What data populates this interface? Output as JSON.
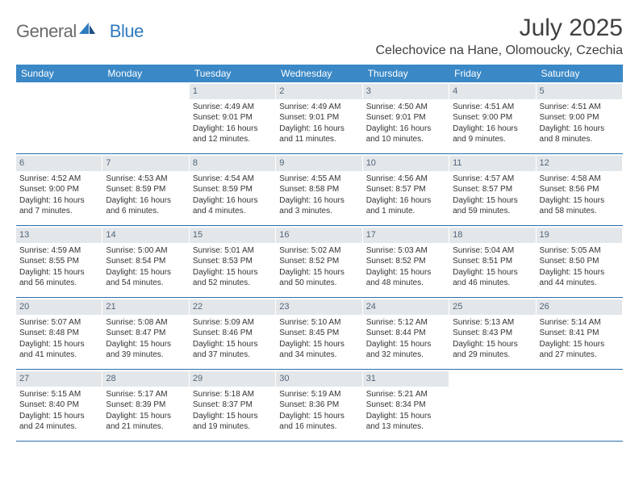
{
  "brand": {
    "word1": "General",
    "word2": "Blue"
  },
  "title": "July 2025",
  "location": "Celechovice na Hane, Olomoucky, Czechia",
  "colors": {
    "header_bg": "#3a88c6",
    "header_text": "#ffffff",
    "daynum_bg": "#e4e7ea",
    "daynum_text": "#50657a",
    "rule": "#2a6ea8",
    "body_text": "#333333",
    "title_text": "#404040",
    "logo_gray": "#6a6a6a",
    "logo_blue": "#2f7bbf"
  },
  "dow": [
    "Sunday",
    "Monday",
    "Tuesday",
    "Wednesday",
    "Thursday",
    "Friday",
    "Saturday"
  ],
  "weeks": [
    [
      {
        "n": "",
        "empty": true
      },
      {
        "n": "",
        "empty": true
      },
      {
        "n": "1",
        "sr": "Sunrise: 4:49 AM",
        "ss": "Sunset: 9:01 PM",
        "d1": "Daylight: 16 hours",
        "d2": "and 12 minutes."
      },
      {
        "n": "2",
        "sr": "Sunrise: 4:49 AM",
        "ss": "Sunset: 9:01 PM",
        "d1": "Daylight: 16 hours",
        "d2": "and 11 minutes."
      },
      {
        "n": "3",
        "sr": "Sunrise: 4:50 AM",
        "ss": "Sunset: 9:01 PM",
        "d1": "Daylight: 16 hours",
        "d2": "and 10 minutes."
      },
      {
        "n": "4",
        "sr": "Sunrise: 4:51 AM",
        "ss": "Sunset: 9:00 PM",
        "d1": "Daylight: 16 hours",
        "d2": "and 9 minutes."
      },
      {
        "n": "5",
        "sr": "Sunrise: 4:51 AM",
        "ss": "Sunset: 9:00 PM",
        "d1": "Daylight: 16 hours",
        "d2": "and 8 minutes."
      }
    ],
    [
      {
        "n": "6",
        "sr": "Sunrise: 4:52 AM",
        "ss": "Sunset: 9:00 PM",
        "d1": "Daylight: 16 hours",
        "d2": "and 7 minutes."
      },
      {
        "n": "7",
        "sr": "Sunrise: 4:53 AM",
        "ss": "Sunset: 8:59 PM",
        "d1": "Daylight: 16 hours",
        "d2": "and 6 minutes."
      },
      {
        "n": "8",
        "sr": "Sunrise: 4:54 AM",
        "ss": "Sunset: 8:59 PM",
        "d1": "Daylight: 16 hours",
        "d2": "and 4 minutes."
      },
      {
        "n": "9",
        "sr": "Sunrise: 4:55 AM",
        "ss": "Sunset: 8:58 PM",
        "d1": "Daylight: 16 hours",
        "d2": "and 3 minutes."
      },
      {
        "n": "10",
        "sr": "Sunrise: 4:56 AM",
        "ss": "Sunset: 8:57 PM",
        "d1": "Daylight: 16 hours",
        "d2": "and 1 minute."
      },
      {
        "n": "11",
        "sr": "Sunrise: 4:57 AM",
        "ss": "Sunset: 8:57 PM",
        "d1": "Daylight: 15 hours",
        "d2": "and 59 minutes."
      },
      {
        "n": "12",
        "sr": "Sunrise: 4:58 AM",
        "ss": "Sunset: 8:56 PM",
        "d1": "Daylight: 15 hours",
        "d2": "and 58 minutes."
      }
    ],
    [
      {
        "n": "13",
        "sr": "Sunrise: 4:59 AM",
        "ss": "Sunset: 8:55 PM",
        "d1": "Daylight: 15 hours",
        "d2": "and 56 minutes."
      },
      {
        "n": "14",
        "sr": "Sunrise: 5:00 AM",
        "ss": "Sunset: 8:54 PM",
        "d1": "Daylight: 15 hours",
        "d2": "and 54 minutes."
      },
      {
        "n": "15",
        "sr": "Sunrise: 5:01 AM",
        "ss": "Sunset: 8:53 PM",
        "d1": "Daylight: 15 hours",
        "d2": "and 52 minutes."
      },
      {
        "n": "16",
        "sr": "Sunrise: 5:02 AM",
        "ss": "Sunset: 8:52 PM",
        "d1": "Daylight: 15 hours",
        "d2": "and 50 minutes."
      },
      {
        "n": "17",
        "sr": "Sunrise: 5:03 AM",
        "ss": "Sunset: 8:52 PM",
        "d1": "Daylight: 15 hours",
        "d2": "and 48 minutes."
      },
      {
        "n": "18",
        "sr": "Sunrise: 5:04 AM",
        "ss": "Sunset: 8:51 PM",
        "d1": "Daylight: 15 hours",
        "d2": "and 46 minutes."
      },
      {
        "n": "19",
        "sr": "Sunrise: 5:05 AM",
        "ss": "Sunset: 8:50 PM",
        "d1": "Daylight: 15 hours",
        "d2": "and 44 minutes."
      }
    ],
    [
      {
        "n": "20",
        "sr": "Sunrise: 5:07 AM",
        "ss": "Sunset: 8:48 PM",
        "d1": "Daylight: 15 hours",
        "d2": "and 41 minutes."
      },
      {
        "n": "21",
        "sr": "Sunrise: 5:08 AM",
        "ss": "Sunset: 8:47 PM",
        "d1": "Daylight: 15 hours",
        "d2": "and 39 minutes."
      },
      {
        "n": "22",
        "sr": "Sunrise: 5:09 AM",
        "ss": "Sunset: 8:46 PM",
        "d1": "Daylight: 15 hours",
        "d2": "and 37 minutes."
      },
      {
        "n": "23",
        "sr": "Sunrise: 5:10 AM",
        "ss": "Sunset: 8:45 PM",
        "d1": "Daylight: 15 hours",
        "d2": "and 34 minutes."
      },
      {
        "n": "24",
        "sr": "Sunrise: 5:12 AM",
        "ss": "Sunset: 8:44 PM",
        "d1": "Daylight: 15 hours",
        "d2": "and 32 minutes."
      },
      {
        "n": "25",
        "sr": "Sunrise: 5:13 AM",
        "ss": "Sunset: 8:43 PM",
        "d1": "Daylight: 15 hours",
        "d2": "and 29 minutes."
      },
      {
        "n": "26",
        "sr": "Sunrise: 5:14 AM",
        "ss": "Sunset: 8:41 PM",
        "d1": "Daylight: 15 hours",
        "d2": "and 27 minutes."
      }
    ],
    [
      {
        "n": "27",
        "sr": "Sunrise: 5:15 AM",
        "ss": "Sunset: 8:40 PM",
        "d1": "Daylight: 15 hours",
        "d2": "and 24 minutes."
      },
      {
        "n": "28",
        "sr": "Sunrise: 5:17 AM",
        "ss": "Sunset: 8:39 PM",
        "d1": "Daylight: 15 hours",
        "d2": "and 21 minutes."
      },
      {
        "n": "29",
        "sr": "Sunrise: 5:18 AM",
        "ss": "Sunset: 8:37 PM",
        "d1": "Daylight: 15 hours",
        "d2": "and 19 minutes."
      },
      {
        "n": "30",
        "sr": "Sunrise: 5:19 AM",
        "ss": "Sunset: 8:36 PM",
        "d1": "Daylight: 15 hours",
        "d2": "and 16 minutes."
      },
      {
        "n": "31",
        "sr": "Sunrise: 5:21 AM",
        "ss": "Sunset: 8:34 PM",
        "d1": "Daylight: 15 hours",
        "d2": "and 13 minutes."
      },
      {
        "n": "",
        "empty": true
      },
      {
        "n": "",
        "empty": true
      }
    ]
  ]
}
